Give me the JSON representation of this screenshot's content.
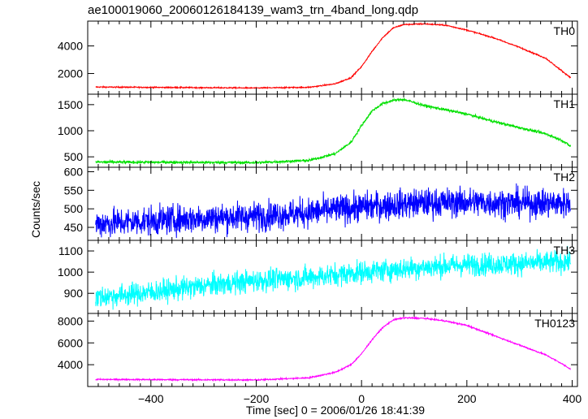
{
  "title": "ae100019060_20060126184139_wam3_trn_4band_long.qdp",
  "ylabel": "Counts/sec",
  "xlabel": "Time [sec] 0 = 2006/01/26 18:41:39",
  "chart_data": {
    "type": "line",
    "layout": "stacked panels sharing x axis",
    "xlim": [
      -520,
      410
    ],
    "xticks": [
      -400,
      -200,
      0,
      200,
      400
    ],
    "panels": [
      {
        "name": "TH0",
        "color": "#ff0000",
        "ylim": [
          500,
          5800
        ],
        "yticks": [
          2000,
          4000
        ],
        "noise": 30,
        "points": [
          [
            -505,
            1020
          ],
          [
            -200,
            950
          ],
          [
            -100,
            1000
          ],
          [
            -50,
            1250
          ],
          [
            -20,
            1700
          ],
          [
            0,
            2500
          ],
          [
            20,
            3600
          ],
          [
            40,
            4600
          ],
          [
            60,
            5300
          ],
          [
            80,
            5550
          ],
          [
            120,
            5600
          ],
          [
            160,
            5500
          ],
          [
            200,
            5150
          ],
          [
            250,
            4600
          ],
          [
            300,
            3900
          ],
          [
            350,
            3100
          ],
          [
            380,
            2200
          ],
          [
            397,
            1700
          ]
        ]
      },
      {
        "name": "TH1",
        "color": "#00e000",
        "ylim": [
          300,
          1700
        ],
        "yticks": [
          500,
          1000,
          1500
        ],
        "noise": 18,
        "points": [
          [
            -505,
            400
          ],
          [
            -200,
            390
          ],
          [
            -100,
            430
          ],
          [
            -50,
            560
          ],
          [
            -20,
            780
          ],
          [
            0,
            1100
          ],
          [
            20,
            1380
          ],
          [
            40,
            1520
          ],
          [
            60,
            1580
          ],
          [
            80,
            1600
          ],
          [
            120,
            1480
          ],
          [
            160,
            1400
          ],
          [
            200,
            1320
          ],
          [
            250,
            1180
          ],
          [
            300,
            1060
          ],
          [
            350,
            940
          ],
          [
            380,
            820
          ],
          [
            397,
            700
          ]
        ]
      },
      {
        "name": "TH2",
        "color": "#0000ff",
        "ylim": [
          415,
          612
        ],
        "yticks": [
          450,
          500,
          550,
          600
        ],
        "noise": 28,
        "points": [
          [
            -505,
            460
          ],
          [
            -300,
            475
          ],
          [
            -200,
            480
          ],
          [
            -100,
            490
          ],
          [
            0,
            505
          ],
          [
            100,
            515
          ],
          [
            200,
            518
          ],
          [
            300,
            515
          ],
          [
            397,
            515
          ]
        ]
      },
      {
        "name": "TH3",
        "color": "#00ffff",
        "ylim": [
          805,
          1150
        ],
        "yticks": [
          900,
          1000,
          1100
        ],
        "noise": 38,
        "points": [
          [
            -505,
            880
          ],
          [
            -400,
            905
          ],
          [
            -300,
            935
          ],
          [
            -200,
            960
          ],
          [
            -100,
            975
          ],
          [
            0,
            1000
          ],
          [
            100,
            1020
          ],
          [
            200,
            1035
          ],
          [
            300,
            1040
          ],
          [
            397,
            1050
          ]
        ]
      },
      {
        "name": "TH0123",
        "color": "#ff00ff",
        "ylim": [
          2000,
          8700
        ],
        "yticks": [
          4000,
          6000,
          8000
        ],
        "noise": 45,
        "points": [
          [
            -505,
            2650
          ],
          [
            -200,
            2600
          ],
          [
            -100,
            2800
          ],
          [
            -50,
            3300
          ],
          [
            -20,
            4000
          ],
          [
            0,
            5000
          ],
          [
            20,
            6300
          ],
          [
            40,
            7400
          ],
          [
            60,
            8100
          ],
          [
            80,
            8300
          ],
          [
            120,
            8250
          ],
          [
            160,
            8000
          ],
          [
            200,
            7600
          ],
          [
            250,
            6700
          ],
          [
            300,
            5800
          ],
          [
            350,
            4900
          ],
          [
            380,
            4100
          ],
          [
            397,
            3600
          ]
        ]
      }
    ]
  }
}
